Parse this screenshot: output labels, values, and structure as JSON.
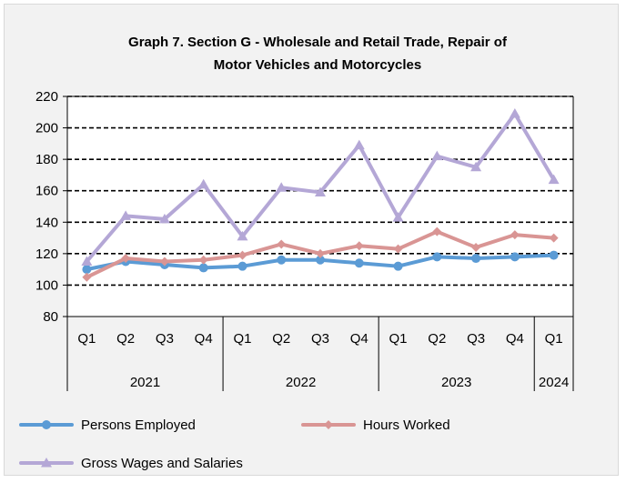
{
  "chart_data": {
    "type": "line",
    "title_lines": [
      "Graph 7. Section G - Wholesale and Retail Trade, Repair of",
      "Motor Vehicles and Motorcycles"
    ],
    "categories": [
      "Q1",
      "Q2",
      "Q3",
      "Q4",
      "Q1",
      "Q2",
      "Q3",
      "Q4",
      "Q1",
      "Q2",
      "Q3",
      "Q4",
      "Q1"
    ],
    "year_groups": [
      {
        "label": "2021",
        "count": 4
      },
      {
        "label": "2022",
        "count": 4
      },
      {
        "label": "2023",
        "count": 4
      },
      {
        "label": "2024",
        "count": 1
      }
    ],
    "ylim": [
      80,
      220
    ],
    "yticks": [
      80,
      100,
      120,
      140,
      160,
      180,
      200,
      220
    ],
    "grid": "dashed horizontal",
    "legend_position": "bottom",
    "series": [
      {
        "name": "Persons Employed",
        "color": "#5b9bd5",
        "marker": "circle",
        "values": [
          110,
          115,
          113,
          111,
          112,
          116,
          116,
          114,
          112,
          118,
          117,
          118,
          119
        ]
      },
      {
        "name": "Hours Worked",
        "color": "#d99594",
        "marker": "diamond",
        "values": [
          105,
          117,
          115,
          116,
          119,
          126,
          120,
          125,
          123,
          134,
          124,
          132,
          130
        ]
      },
      {
        "name": "Gross Wages and Salaries",
        "color": "#b4a7d6",
        "marker": "triangle",
        "values": [
          115,
          144,
          142,
          164,
          131,
          162,
          159,
          189,
          143,
          182,
          175,
          209,
          167
        ]
      }
    ]
  }
}
